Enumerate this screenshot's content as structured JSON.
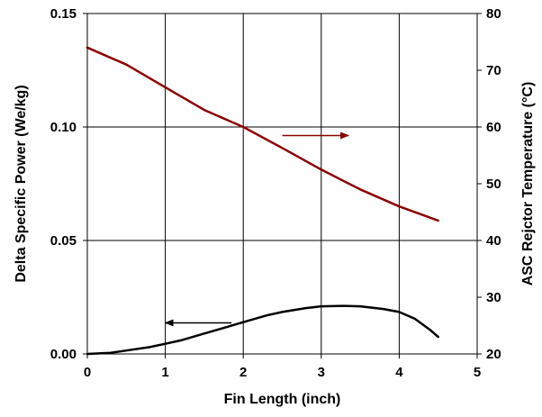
{
  "chart_data": {
    "type": "line",
    "title": "",
    "xlabel": "Fin Length (inch)",
    "ylabel_left": "Delta Specific Power (We/kg)",
    "ylabel_right": "ASC Rejctor Temperature (°C)",
    "xlim": [
      0,
      5
    ],
    "ylim_left": [
      0,
      0.15
    ],
    "ylim_right": [
      20,
      80
    ],
    "x_ticks": [
      "0",
      "1",
      "2",
      "3",
      "4",
      "5"
    ],
    "y_left_ticks": [
      "0.00",
      "0.05",
      "0.10",
      "0.15"
    ],
    "y_right_ticks": [
      "20",
      "30",
      "40",
      "50",
      "60",
      "70",
      "80"
    ],
    "grid": true,
    "colors": {
      "temperature": "#8b0000",
      "power": "#000000"
    },
    "series": [
      {
        "axis": "left",
        "x": [
          0,
          0.3,
          0.5,
          0.8,
          1.0,
          1.2,
          1.5,
          1.8,
          2.0,
          2.3,
          2.5,
          2.8,
          3.0,
          3.3,
          3.5,
          3.8,
          4.0,
          4.2,
          4.4,
          4.5
        ],
        "values": [
          0.0,
          0.0005,
          0.0015,
          0.003,
          0.0045,
          0.006,
          0.009,
          0.012,
          0.014,
          0.017,
          0.0185,
          0.0202,
          0.021,
          0.0212,
          0.021,
          0.0198,
          0.0185,
          0.0155,
          0.0105,
          0.0075
        ]
      },
      {
        "axis": "right",
        "x": [
          0,
          0.5,
          1.0,
          1.5,
          2.0,
          2.5,
          3.0,
          3.5,
          4.0,
          4.5
        ],
        "values": [
          74,
          71,
          67,
          63,
          60,
          56.3,
          52.5,
          49,
          46,
          43.5
        ]
      }
    ],
    "annotations": [
      {
        "type": "arrow",
        "direction": "right",
        "points_to": "right-axis"
      },
      {
        "type": "arrow",
        "direction": "left",
        "points_to": "left-axis"
      }
    ]
  }
}
